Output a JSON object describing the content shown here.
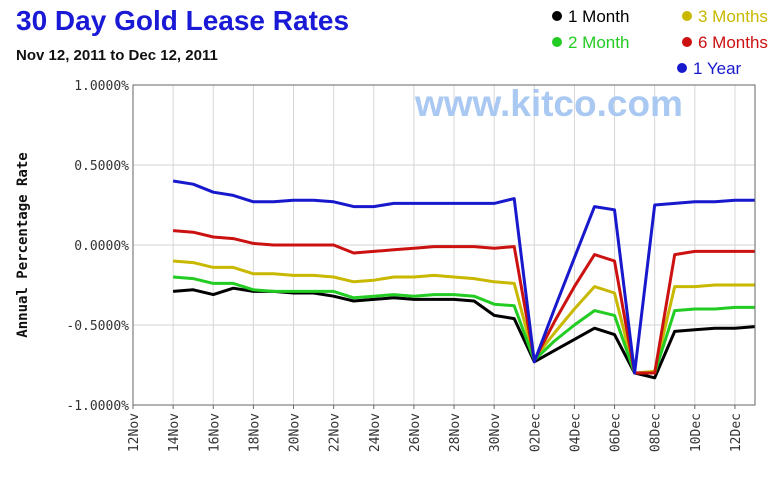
{
  "chart_data": {
    "type": "line",
    "title": "30 Day Gold Lease Rates",
    "subtitle": "Nov 12, 2011 to Dec 12, 2011",
    "ylabel": "Annual Percentage Rate",
    "xlabel": "",
    "watermark": "www.kitco.com",
    "ylim": [
      -1.0,
      1.0
    ],
    "y_ticks": [
      "1.0000%",
      "0.5000%",
      "0.0000%",
      "-0.5000%",
      "-1.0000%"
    ],
    "y_tick_values": [
      1.0,
      0.5,
      0.0,
      -0.5,
      -1.0
    ],
    "x_range": [
      -1,
      30
    ],
    "x_ticks": [
      "12Nov",
      "14Nov",
      "16Nov",
      "18Nov",
      "20Nov",
      "22Nov",
      "24Nov",
      "26Nov",
      "28Nov",
      "30Nov",
      "02Dec",
      "04Dec",
      "06Dec",
      "08Dec",
      "10Dec",
      "12Dec"
    ],
    "grid": true,
    "legend_position": "top-right",
    "x": [
      1,
      2,
      3,
      4,
      5,
      6,
      7,
      8,
      9,
      10,
      11,
      12,
      13,
      14,
      15,
      16,
      17,
      18,
      19,
      20,
      21,
      22,
      23,
      24,
      25,
      26,
      27,
      28,
      29,
      30
    ],
    "series": [
      {
        "name": "1 Month",
        "color": "#000000",
        "values": [
          -0.29,
          -0.28,
          -0.31,
          -0.27,
          -0.29,
          -0.29,
          -0.3,
          -0.3,
          -0.32,
          -0.35,
          -0.34,
          -0.33,
          -0.34,
          -0.34,
          -0.34,
          -0.35,
          -0.44,
          -0.46,
          -0.73,
          -0.66,
          -0.59,
          -0.52,
          -0.56,
          -0.8,
          -0.83,
          -0.54,
          -0.53,
          -0.52,
          -0.52,
          -0.51
        ]
      },
      {
        "name": "3 Months",
        "color": "#c9b800",
        "values": [
          -0.1,
          -0.11,
          -0.14,
          -0.14,
          -0.18,
          -0.18,
          -0.19,
          -0.19,
          -0.2,
          -0.23,
          -0.22,
          -0.2,
          -0.2,
          -0.19,
          -0.2,
          -0.21,
          -0.23,
          -0.24,
          -0.71,
          -0.55,
          -0.4,
          -0.26,
          -0.3,
          -0.8,
          -0.79,
          -0.26,
          -0.26,
          -0.25,
          -0.25,
          -0.25
        ]
      },
      {
        "name": "2 Month",
        "color": "#22cc22",
        "values": [
          -0.2,
          -0.21,
          -0.24,
          -0.24,
          -0.28,
          -0.29,
          -0.29,
          -0.29,
          -0.29,
          -0.33,
          -0.32,
          -0.31,
          -0.32,
          -0.31,
          -0.31,
          -0.32,
          -0.37,
          -0.38,
          -0.72,
          -0.6,
          -0.5,
          -0.41,
          -0.44,
          -0.8,
          -0.8,
          -0.41,
          -0.4,
          -0.4,
          -0.39,
          -0.39
        ]
      },
      {
        "name": "6 Months",
        "color": "#cc1111",
        "values": [
          0.09,
          0.08,
          0.05,
          0.04,
          0.01,
          0.0,
          0.0,
          0.0,
          0.0,
          -0.05,
          -0.04,
          -0.03,
          -0.02,
          -0.01,
          -0.01,
          -0.01,
          -0.02,
          -0.01,
          -0.72,
          -0.48,
          -0.26,
          -0.06,
          -0.1,
          -0.8,
          -0.8,
          -0.06,
          -0.04,
          -0.04,
          -0.04,
          -0.04
        ]
      },
      {
        "name": "1 Year",
        "color": "#1818cc",
        "values": [
          0.4,
          0.38,
          0.33,
          0.31,
          0.27,
          0.27,
          0.28,
          0.28,
          0.27,
          0.24,
          0.24,
          0.26,
          0.26,
          0.26,
          0.26,
          0.26,
          0.26,
          0.29,
          -0.73,
          -0.4,
          -0.08,
          0.24,
          0.22,
          -0.8,
          0.25,
          0.26,
          0.27,
          0.27,
          0.28,
          0.28
        ]
      }
    ]
  }
}
